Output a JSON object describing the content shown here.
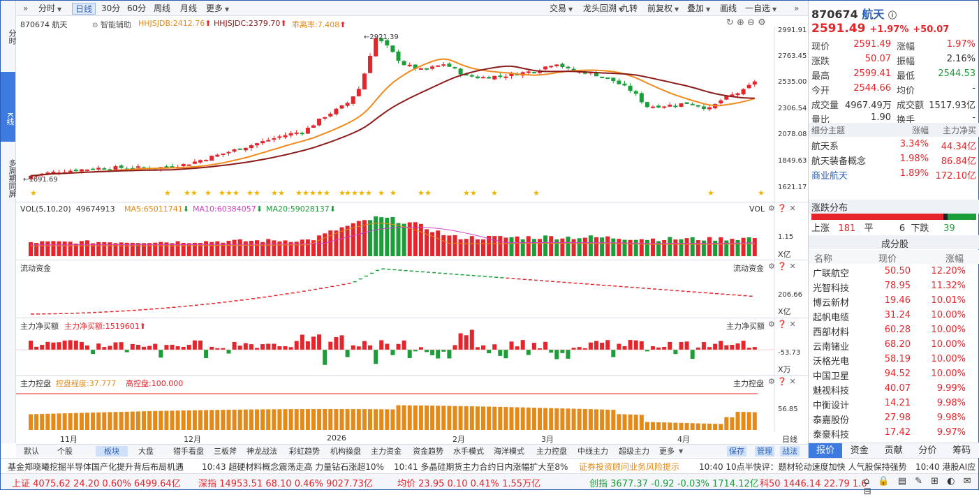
{
  "left_strip": {
    "fenshi": "分时",
    "kline": "K线",
    "multi": "多周期同屏"
  },
  "toolbar": {
    "left": [
      "分时",
      "日线",
      "30分",
      "60分",
      "周线",
      "月线",
      "更多"
    ],
    "right": [
      "交易",
      "龙头回溯",
      "九转",
      "前复权",
      "叠加",
      "画线",
      "一自选"
    ]
  },
  "info": {
    "code_name": "870674 航天",
    "assist": "智能辅助",
    "hhjsjdb": "HHJSJDB:2412.76",
    "hhjsjdc": "HHJSJDC:2379.70",
    "deviation": "乖离率:7.408"
  },
  "price_axis": [
    "2991.91",
    "2763.45",
    "2535.00",
    "2306.54",
    "2078.08",
    "1849.63",
    "1621.17"
  ],
  "price_marks": {
    "high": "2921.39",
    "low": "1691.69"
  },
  "vol": {
    "title": "VOL(5,10,20)",
    "v": "49674913",
    "ma5": "MA5:65011741",
    "ma10": "MA10:60384057",
    "ma20": "MA20:59028137",
    "axis": "1.15",
    "unit": "X亿",
    "label": "VOL"
  },
  "flow": {
    "title": "流动资金",
    "axis": "206.66",
    "unit": "X亿",
    "label": "流动资金"
  },
  "netbuy": {
    "title": "主力净买额",
    "val": "主力净买额:1519601",
    "axis": "-53.73",
    "unit": "X万",
    "label": "主力净买额"
  },
  "control": {
    "title": "主力控盘",
    "degree": "控盘程度:37.777",
    "high": "高控盘:100.000",
    "axis": "56.85",
    "label": "主力控盘"
  },
  "x_axis": [
    "11月",
    "12月",
    "2026",
    "2月",
    "3月",
    "4月"
  ],
  "x_axis_right": "日线",
  "bottom_tabs": [
    "默认",
    "个股",
    "板块",
    "大盘",
    "猎手看盘",
    "三板斧",
    "神龙战法",
    "彩虹趋势",
    "机构操盘",
    "主力资金",
    "资金趋势",
    "水手模式",
    "海洋模式",
    "主力控盘",
    "中线主力",
    "超级主力",
    "更多"
  ],
  "bottom_right": [
    "保存",
    "管理",
    "战法"
  ],
  "quote": {
    "code": "870674",
    "name": "航天",
    "price": "2591.49",
    "pct": "+1.97%",
    "chg": "+50.07",
    "rows": [
      [
        "现价",
        "2591.49",
        "涨幅",
        "1.97%"
      ],
      [
        "涨跌",
        "50.07",
        "振幅",
        "2.16%"
      ],
      [
        "最高",
        "2599.41",
        "最低",
        "2544.53"
      ],
      [
        "今开",
        "2544.66",
        "均价",
        "-"
      ],
      [
        "成交量",
        "4967.49万",
        "成交额",
        "1517.93亿"
      ],
      [
        "量比",
        "1.90",
        "换手",
        "-"
      ]
    ]
  },
  "themes": {
    "header": [
      "细分主题",
      "涨幅",
      "主力净买"
    ],
    "rows": [
      [
        "航天系",
        "3.34%",
        "44.34亿"
      ],
      [
        "航天装备概念",
        "1.98%",
        "86.84亿"
      ],
      [
        "商业航天",
        "1.89%",
        "172.10亿"
      ]
    ]
  },
  "dist": {
    "title": "涨跌分布",
    "up_label": "上涨",
    "up": "181",
    "flat_label": "平",
    "flat": "6",
    "down_label": "下跌",
    "down": "39",
    "up_ratio": 0.8,
    "flat_ratio": 0.027,
    "down_ratio": 0.173
  },
  "components": {
    "title": "成分股",
    "header": [
      "名称",
      "现价",
      "涨幅"
    ],
    "rows": [
      [
        "广联航空",
        "50.50",
        "12.20%"
      ],
      [
        "光智科技",
        "78.95",
        "11.32%"
      ],
      [
        "博云新材",
        "19.46",
        "10.01%"
      ],
      [
        "起帆电缆",
        "31.24",
        "10.00%"
      ],
      [
        "西部材料",
        "60.28",
        "10.00%"
      ],
      [
        "云南锗业",
        "68.20",
        "10.00%"
      ],
      [
        "沃格光电",
        "58.19",
        "10.00%"
      ],
      [
        "中国卫星",
        "94.52",
        "10.00%"
      ],
      [
        "魅视科技",
        "40.07",
        "9.99%"
      ],
      [
        "中衡设计",
        "14.21",
        "9.98%"
      ],
      [
        "泰嘉股份",
        "27.98",
        "9.98%"
      ],
      [
        "泰豪科技",
        "17.42",
        "9.97%"
      ]
    ]
  },
  "right_tabs": [
    "报价",
    "资金",
    "贡献",
    "分价",
    "筹码"
  ],
  "ticker": [
    "基金郑晓曦挖掘半导体国产化提升背后布局机遇",
    "10:43 超硬材料概念震荡走高 力量钻石涨超10%",
    "10:41 多晶硅期货主力合约日内涨幅扩大至8%",
    "证券投资顾问业务风险提示",
    "10:40 10点半快评：题材轮动速度加快 人气股保持强势",
    "10:40 港股AI应"
  ],
  "indices": [
    {
      "name": "上证",
      "val": "4075.62",
      "chg": "24.20",
      "pct": "0.60%",
      "amt": "6499.64亿",
      "dir": "up"
    },
    {
      "name": "深指",
      "val": "14953.51",
      "chg": "68.10",
      "pct": "0.46%",
      "amt": "9027.73亿",
      "dir": "up"
    },
    {
      "name": "均价",
      "val": "23.95",
      "chg": "0.10",
      "pct": "0.41%",
      "amt": "1.55万亿",
      "dir": "up"
    },
    {
      "name": "创指",
      "val": "3677.37",
      "chg": "-0.92",
      "pct": "-0.03%",
      "amt": "1714.12亿",
      "dir": "down"
    },
    {
      "name": "科50",
      "val": "1446.14",
      "chg": "22.79",
      "pct": "1.6",
      "amt": "",
      "dir": "up"
    }
  ],
  "colors": {
    "up": "#e4252b",
    "down": "#1b9e3a",
    "accent": "#2b5fb4",
    "orange": "#e38a1a"
  }
}
